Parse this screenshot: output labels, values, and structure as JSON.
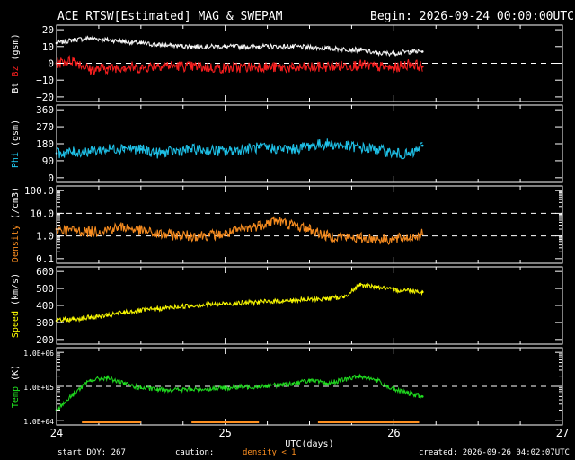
{
  "header": {
    "title": "ACE RTSW[Estimated] MAG & SWEPAM",
    "begin": "Begin: 2026-09-24 00:00:00UTC"
  },
  "footer": {
    "start_doy": "start DOY: 267",
    "caution": "caution:",
    "density_note": "density < 1",
    "created": "created: 2026-09-26 04:02:07UTC"
  },
  "colors": {
    "bt": "#ffffff",
    "bz": "#ff2020",
    "phi": "#20c8f0",
    "density": "#ff9020",
    "speed": "#ffff00",
    "temp": "#20e020",
    "frame": "#ffffff",
    "caution_bar": "#ff9020"
  },
  "chart_data": [
    {
      "type": "scatter",
      "ylabel": "Bt Bz (gsm)",
      "ylabel_parts": [
        {
          "text": "Bt",
          "color": "#ffffff"
        },
        {
          "text": "Bz",
          "color": "#ff2020"
        },
        {
          "text": "(gsm)",
          "color": "#ffffff"
        }
      ],
      "ylim": [
        -20,
        20
      ],
      "yticks": [
        -20,
        -10,
        0,
        10,
        20
      ],
      "yticklabels": [
        "−20",
        "−10",
        "0",
        "10",
        "20"
      ],
      "reference_lines": [
        0
      ],
      "series": [
        {
          "name": "Bt",
          "color": "#ffffff",
          "x": [
            24.0,
            24.1,
            24.2,
            24.3,
            24.4,
            24.5,
            24.6,
            24.8,
            25.0,
            25.2,
            25.4,
            25.6,
            25.8,
            25.9,
            26.0,
            26.1,
            26.17
          ],
          "y": [
            12,
            14,
            15,
            14,
            13,
            12,
            11,
            10,
            10,
            10,
            10,
            9,
            8,
            6,
            6,
            7,
            7
          ]
        },
        {
          "name": "Bz",
          "color": "#ff2020",
          "x": [
            24.0,
            24.1,
            24.2,
            24.3,
            24.4,
            24.5,
            24.6,
            24.8,
            25.0,
            25.2,
            25.4,
            25.6,
            25.8,
            25.9,
            26.0,
            26.1,
            26.17
          ],
          "y": [
            0,
            2,
            -4,
            -3,
            -2,
            -3,
            -1,
            -2,
            -3,
            -2,
            -3,
            -2,
            -1,
            -2,
            -3,
            0,
            -2
          ]
        }
      ]
    },
    {
      "type": "scatter",
      "ylabel": "Phi (gsm)",
      "ylabel_parts": [
        {
          "text": "Phi",
          "color": "#20c8f0"
        },
        {
          "text": "(gsm)",
          "color": "#ffffff"
        }
      ],
      "ylim": [
        0,
        360
      ],
      "yticks": [
        0,
        90,
        180,
        270,
        360
      ],
      "yticklabels": [
        "0",
        "90",
        "180",
        "270",
        "360"
      ],
      "series": [
        {
          "name": "Phi",
          "color": "#20c8f0",
          "x": [
            24.0,
            24.2,
            24.4,
            24.5,
            24.6,
            24.8,
            25.0,
            25.2,
            25.4,
            25.5,
            25.6,
            25.8,
            25.9,
            26.0,
            26.1,
            26.17
          ],
          "y": [
            130,
            140,
            160,
            150,
            130,
            150,
            140,
            160,
            150,
            170,
            180,
            160,
            150,
            130,
            120,
            170
          ]
        }
      ]
    },
    {
      "type": "scatter",
      "ylabel": "Density (/cm3)",
      "ylabel_parts": [
        {
          "text": "Density",
          "color": "#ff9020"
        },
        {
          "text": "(/cm3)",
          "color": "#ffffff"
        }
      ],
      "yscale": "log",
      "ylim": [
        0.1,
        100.0
      ],
      "yticks": [
        0.1,
        1.0,
        10.0,
        100.0
      ],
      "yticklabels": [
        "0.1",
        "1.0",
        "10.0",
        "100.0"
      ],
      "reference_lines": [
        1.0,
        10.0
      ],
      "series": [
        {
          "name": "Density",
          "color": "#ff9020",
          "x": [
            24.0,
            24.2,
            24.4,
            24.6,
            24.8,
            25.0,
            25.2,
            25.3,
            25.4,
            25.5,
            25.6,
            25.8,
            26.0,
            26.1,
            26.17
          ],
          "y": [
            2,
            1.5,
            2.5,
            1.2,
            1.0,
            1.2,
            3,
            5,
            3,
            2,
            1.0,
            0.8,
            0.7,
            0.9,
            1.2
          ]
        }
      ]
    },
    {
      "type": "scatter",
      "ylabel": "Speed (km/s)",
      "ylabel_parts": [
        {
          "text": "Speed",
          "color": "#ffff00"
        },
        {
          "text": "(km/s)",
          "color": "#ffffff"
        }
      ],
      "ylim": [
        200,
        600
      ],
      "yticks": [
        200,
        300,
        400,
        500,
        600
      ],
      "yticklabels": [
        "200",
        "300",
        "400",
        "500",
        "600"
      ],
      "series": [
        {
          "name": "Speed",
          "color": "#ffff00",
          "x": [
            24.0,
            24.1,
            24.2,
            24.3,
            24.4,
            24.6,
            24.8,
            25.0,
            25.2,
            25.4,
            25.6,
            25.7,
            25.8,
            25.9,
            26.0,
            26.1,
            26.17
          ],
          "y": [
            310,
            320,
            330,
            340,
            360,
            380,
            400,
            410,
            420,
            430,
            440,
            450,
            520,
            510,
            490,
            490,
            480
          ]
        }
      ]
    },
    {
      "type": "scatter",
      "ylabel": "Temp (K)",
      "ylabel_parts": [
        {
          "text": "Temp",
          "color": "#20e020"
        },
        {
          "text": "(K)",
          "color": "#ffffff"
        }
      ],
      "yscale": "log",
      "ylim": [
        10000,
        1000000
      ],
      "yticks": [
        10000,
        100000,
        1000000
      ],
      "yticklabels": [
        "1.0E+04",
        "1.0E+05",
        "1.0E+06"
      ],
      "reference_lines": [
        100000
      ],
      "series": [
        {
          "name": "Temp",
          "color": "#20e020",
          "x": [
            24.0,
            24.1,
            24.2,
            24.3,
            24.4,
            24.5,
            24.6,
            24.8,
            25.0,
            25.2,
            25.4,
            25.5,
            25.6,
            25.8,
            25.9,
            26.0,
            26.1,
            26.17
          ],
          "y": [
            20000,
            60000,
            150000,
            180000,
            120000,
            90000,
            80000,
            80000,
            90000,
            100000,
            120000,
            150000,
            120000,
            200000,
            150000,
            80000,
            60000,
            50000
          ]
        }
      ]
    }
  ],
  "xaxis": {
    "label": "UTC(days)",
    "range": [
      24,
      27
    ],
    "ticks": [
      24,
      25,
      26,
      27
    ],
    "ticklabels": [
      "24",
      "25",
      "26",
      "27"
    ]
  },
  "caution_intervals": [
    [
      24.15,
      24.5
    ],
    [
      24.8,
      25.2
    ],
    [
      25.55,
      26.15
    ]
  ]
}
